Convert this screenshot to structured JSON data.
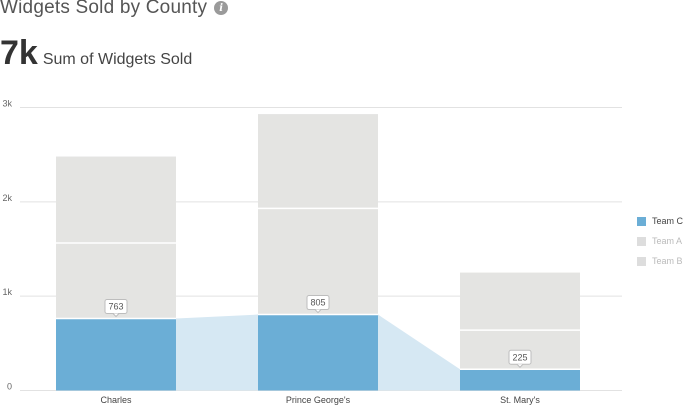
{
  "header": {
    "title": "Widgets Sold by County",
    "info_icon": "info-icon"
  },
  "kpi": {
    "value": "7k",
    "label": "Sum of Widgets Sold"
  },
  "colors": {
    "team_c": "#6baed6",
    "team_c_area": "#d6e8f3",
    "team_a": "#e4e4e2",
    "team_b": "#e4e4e2",
    "grid": "#e2e2e2",
    "segment_divider": "#ffffff"
  },
  "chart_data": {
    "type": "bar",
    "stacked": true,
    "categories": [
      "Charles",
      "Prince George's",
      "St. Mary's"
    ],
    "series": [
      {
        "name": "Team C",
        "values": [
          763,
          805,
          225
        ],
        "color": "#6baed6",
        "active": true
      },
      {
        "name": "Team A",
        "values": [
          800,
          1125,
          415
        ],
        "color": "#e4e4e2",
        "active": false
      },
      {
        "name": "Team B",
        "values": [
          917,
          1000,
          610
        ],
        "color": "#e4e4e2",
        "active": false
      }
    ],
    "data_labels": {
      "series": "Team C",
      "values": [
        "763",
        "805",
        "225"
      ]
    },
    "y_ticks": [
      "0",
      "1k",
      "2k",
      "3k"
    ],
    "ylim": [
      0,
      3000
    ],
    "grid": true,
    "legend_position": "right",
    "title": "",
    "xlabel": "",
    "ylabel": ""
  }
}
